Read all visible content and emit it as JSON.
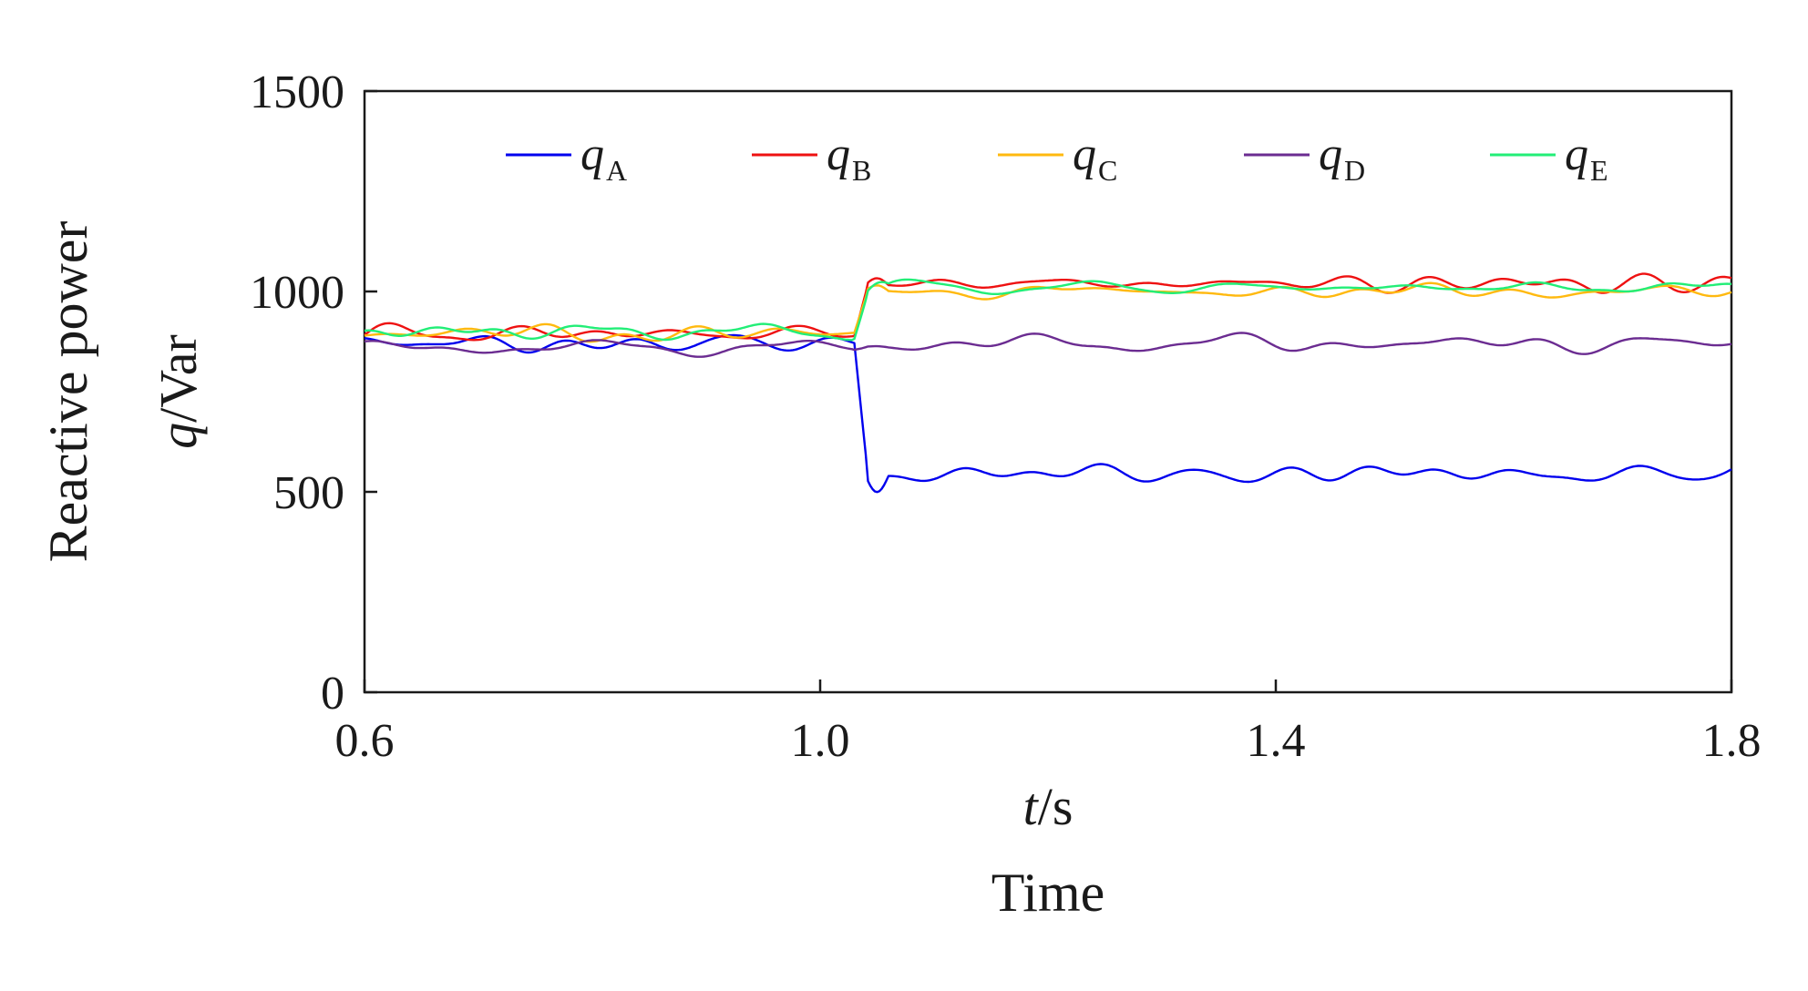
{
  "chart_data": {
    "type": "line",
    "title": "",
    "xlabel_var": "t",
    "xlabel_unit": "/s",
    "xlabel_name": "Time",
    "ylabel_name": "Reactive power",
    "ylabel_var": "q",
    "ylabel_unit": "/Var",
    "xlim": [
      0.6,
      1.8
    ],
    "ylim": [
      0,
      1500
    ],
    "xticks": [
      0.6,
      1.0,
      1.4,
      1.8
    ],
    "xtick_labels": [
      "0.6",
      "1.0",
      "1.4",
      "1.8"
    ],
    "yticks": [
      0,
      500,
      1000,
      1500
    ],
    "ytick_labels": [
      "0",
      "500",
      "1000",
      "1500"
    ],
    "legend_position": "top",
    "step_time": 1.03,
    "series": [
      {
        "name": "q",
        "subscript": "A",
        "color": "#0000ee",
        "before": 870,
        "after": 545,
        "noise_before": 25,
        "noise_after": 28
      },
      {
        "name": "q",
        "subscript": "B",
        "color": "#ee1111",
        "before": 895,
        "after": 1020,
        "noise_before": 25,
        "noise_after": 25
      },
      {
        "name": "q",
        "subscript": "C",
        "color": "#ffb90f",
        "before": 895,
        "after": 1000,
        "noise_before": 25,
        "noise_after": 22
      },
      {
        "name": "q",
        "subscript": "D",
        "color": "#6b2c91",
        "before": 860,
        "after": 870,
        "noise_before": 22,
        "noise_after": 28
      },
      {
        "name": "q",
        "subscript": "E",
        "color": "#22ee77",
        "before": 900,
        "after": 1010,
        "noise_before": 25,
        "noise_after": 22
      }
    ]
  }
}
